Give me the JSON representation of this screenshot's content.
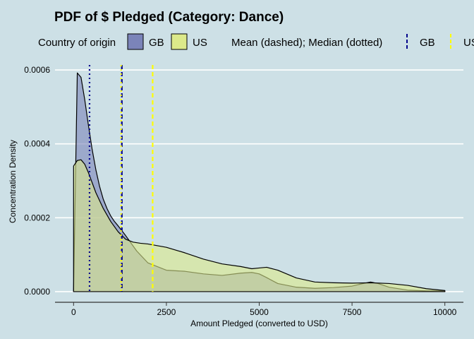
{
  "chart_data": {
    "type": "area",
    "title": "PDF of $ Pledged (Category: Dance)",
    "xlabel": "Amount Pledged (converted to USD)",
    "ylabel": "Concentration Density",
    "xlim": [
      -500,
      10500
    ],
    "ylim": [
      -2.88e-05,
      0.0006288
    ],
    "x_ticks": [
      {
        "value": 0,
        "label": "0"
      },
      {
        "value": 2500,
        "label": "2500"
      },
      {
        "value": 5000,
        "label": "5000"
      },
      {
        "value": 7500,
        "label": "7500"
      },
      {
        "value": 10000,
        "label": "10000"
      }
    ],
    "y_ticks": [
      {
        "value": 0,
        "label": "0.0000"
      },
      {
        "value": 0.0002,
        "label": "0.0002"
      },
      {
        "value": 0.0004,
        "label": "0.0004"
      },
      {
        "value": 0.0006,
        "label": "0.0006"
      }
    ],
    "grid": "horizontal",
    "legend_position": "top",
    "legend": {
      "fill_title": "Country of origin",
      "lines_title": "Mean (dashed); Median (dotted)"
    },
    "series": [
      {
        "name": "GB",
        "color": "#7b84b9",
        "line_color": "#00008b",
        "x": [
          0,
          100,
          200,
          300,
          400,
          500,
          600,
          700,
          800,
          900,
          1000,
          1100,
          1200,
          1300,
          1400,
          1500,
          1700,
          2000,
          2500,
          3000,
          3500,
          4000,
          4500,
          4800,
          5000,
          5200,
          5500,
          6000,
          6500,
          7000,
          7500,
          7800,
          8000,
          8200,
          8500,
          9000,
          9500,
          10000
        ],
        "values": [
          0.0,
          0.000592,
          0.00058,
          0.00052,
          0.00045,
          0.000385,
          0.00033,
          0.000285,
          0.00025,
          0.000225,
          0.000205,
          0.00019,
          0.000178,
          0.000165,
          0.000152,
          0.000138,
          0.00011,
          7.8e-05,
          5.8e-05,
          5.5e-05,
          4.8e-05,
          4.4e-05,
          5e-05,
          5.2e-05,
          4.8e-05,
          3.8e-05,
          2.2e-05,
          1.2e-05,
          9e-06,
          1.1e-05,
          1.5e-05,
          2.2e-05,
          2.6e-05,
          2.2e-05,
          1.2e-05,
          4e-06,
          2e-06,
          2e-06
        ]
      },
      {
        "name": "US",
        "color": "#dce98a",
        "line_color": "#ffff00",
        "x": [
          0,
          100,
          200,
          300,
          400,
          500,
          600,
          800,
          1000,
          1200,
          1400,
          1600,
          1800,
          2000,
          2500,
          3000,
          3500,
          4000,
          4500,
          4800,
          5000,
          5200,
          5500,
          6000,
          6500,
          7000,
          7500,
          8000,
          8500,
          9000,
          9500,
          10000
        ],
        "values": [
          0.00034,
          0.000355,
          0.000357,
          0.000345,
          0.000322,
          0.000295,
          0.000268,
          0.000225,
          0.00019,
          0.000162,
          0.000142,
          0.000134,
          0.000131,
          0.000129,
          0.00012,
          0.000105,
          8.8e-05,
          7.5e-05,
          6.8e-05,
          6.2e-05,
          6.4e-05,
          6.6e-05,
          5.8e-05,
          3.7e-05,
          2.6e-05,
          2.4e-05,
          2.3e-05,
          2.4e-05,
          2.2e-05,
          1.7e-05,
          8e-06,
          3e-06
        ]
      }
    ],
    "reference_lines": [
      {
        "series": "GB",
        "stat": "Median",
        "style": "dotted",
        "x": 430
      },
      {
        "series": "GB",
        "stat": "Mean",
        "style": "dashed",
        "x": 1300
      },
      {
        "series": "US",
        "stat": "Median",
        "style": "dotted",
        "x": 1280
      },
      {
        "series": "US",
        "stat": "Mean",
        "style": "dashed",
        "x": 2130
      }
    ]
  }
}
